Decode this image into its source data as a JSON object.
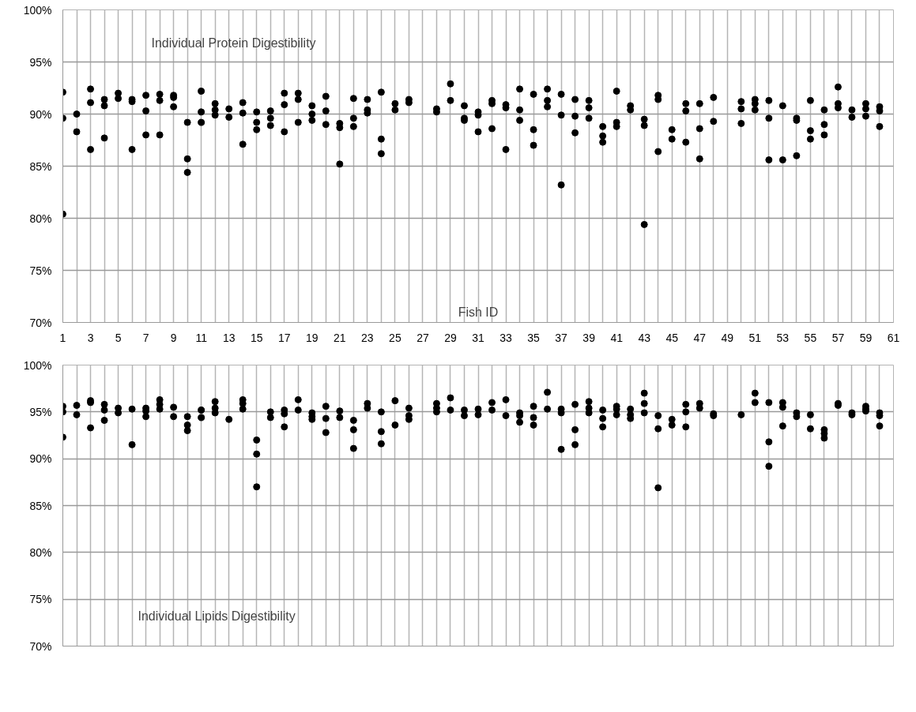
{
  "chart_data": [
    {
      "type": "scatter",
      "title": "Individual Protein Digestibility",
      "xlabel": "Fish ID",
      "marker": "circle",
      "grid": true,
      "xlim": [
        1,
        61
      ],
      "ylim": [
        70,
        100
      ],
      "xticks": [
        1,
        {
          "value": 2,
          "label": null
        },
        3,
        {
          "value": 4,
          "label": null
        },
        5,
        {
          "value": 6,
          "label": null
        },
        7,
        {
          "value": 8,
          "label": null
        },
        9,
        {
          "value": 10,
          "label": null
        },
        11,
        {
          "value": 12,
          "label": null
        },
        13,
        {
          "value": 14,
          "label": null
        },
        15,
        {
          "value": 16,
          "label": null
        },
        17,
        {
          "value": 18,
          "label": null
        },
        19,
        {
          "value": 20,
          "label": null
        },
        21,
        {
          "value": 22,
          "label": null
        },
        23,
        {
          "value": 24,
          "label": null
        },
        25,
        {
          "value": 26,
          "label": null
        },
        27,
        {
          "value": 28,
          "label": null
        },
        29,
        {
          "value": 30,
          "label": null
        },
        31,
        {
          "value": 32,
          "label": null
        },
        33,
        {
          "value": 34,
          "label": null
        },
        35,
        {
          "value": 36,
          "label": null
        },
        37,
        {
          "value": 38,
          "label": null
        },
        39,
        {
          "value": 40,
          "label": null
        },
        41,
        {
          "value": 42,
          "label": null
        },
        43,
        {
          "value": 44,
          "label": null
        },
        45,
        {
          "value": 46,
          "label": null
        },
        47,
        {
          "value": 48,
          "label": null
        },
        49,
        {
          "value": 50,
          "label": null
        },
        51,
        {
          "value": 52,
          "label": null
        },
        53,
        {
          "value": 54,
          "label": null
        },
        55,
        {
          "value": 56,
          "label": null
        },
        57,
        {
          "value": 58,
          "label": null
        },
        59,
        {
          "value": 60,
          "label": null
        },
        61
      ],
      "yticks": [
        {
          "value": 70,
          "label": "70%"
        },
        {
          "value": 75,
          "label": "75%"
        },
        {
          "value": 80,
          "label": "80%"
        },
        {
          "value": 85,
          "label": "85%"
        },
        {
          "value": 90,
          "label": "90%"
        },
        {
          "value": 95,
          "label": "95%"
        },
        {
          "value": 100,
          "label": "100%"
        }
      ],
      "series": [
        {
          "color": "#000000",
          "x": [
            1,
            1,
            1,
            2,
            2,
            3,
            3,
            3,
            4,
            4,
            4,
            5,
            5,
            6,
            6,
            6,
            7,
            7,
            7,
            8,
            8,
            8,
            9,
            9,
            9,
            10,
            10,
            10,
            11,
            11,
            11,
            12,
            12,
            12,
            13,
            13,
            14,
            14,
            14,
            15,
            15,
            15,
            16,
            16,
            16,
            17,
            17,
            17,
            18,
            18,
            18,
            19,
            19,
            19,
            20,
            20,
            20,
            21,
            21,
            21,
            22,
            22,
            22,
            23,
            23,
            23,
            24,
            24,
            24,
            25,
            25,
            26,
            26,
            28,
            28,
            29,
            29,
            30,
            30,
            30,
            31,
            31,
            31,
            32,
            32,
            32,
            33,
            33,
            33,
            34,
            34,
            34,
            35,
            35,
            35,
            36,
            36,
            36,
            37,
            37,
            37,
            38,
            38,
            38,
            39,
            39,
            39,
            40,
            40,
            40,
            41,
            41,
            41,
            42,
            42,
            43,
            43,
            43,
            44,
            44,
            44,
            45,
            45,
            46,
            46,
            46,
            47,
            47,
            47,
            48,
            48,
            50,
            50,
            50,
            51,
            51,
            51,
            52,
            52,
            52,
            53,
            53,
            54,
            54,
            54,
            55,
            55,
            55,
            56,
            56,
            56,
            57,
            57,
            57,
            58,
            58,
            59,
            59,
            59,
            60,
            60,
            60
          ],
          "values": [
            92.1,
            89.6,
            80.4,
            90.0,
            88.3,
            92.4,
            91.1,
            86.6,
            91.4,
            90.8,
            87.7,
            92.0,
            91.5,
            91.4,
            91.2,
            86.6,
            91.8,
            90.3,
            88.0,
            91.9,
            91.3,
            88.0,
            91.8,
            91.6,
            90.7,
            89.2,
            85.7,
            84.4,
            92.2,
            90.2,
            89.2,
            91.0,
            90.4,
            89.9,
            90.5,
            89.7,
            91.1,
            90.1,
            87.1,
            90.2,
            89.2,
            88.5,
            90.3,
            89.6,
            88.9,
            92.0,
            90.9,
            88.3,
            92.0,
            91.4,
            89.2,
            90.8,
            90.0,
            89.4,
            91.7,
            90.3,
            89.0,
            89.1,
            88.7,
            85.2,
            91.5,
            89.6,
            88.8,
            91.4,
            90.4,
            90.1,
            92.1,
            87.6,
            86.2,
            91.0,
            90.4,
            91.4,
            91.1,
            90.5,
            90.2,
            92.9,
            91.3,
            90.8,
            89.6,
            89.4,
            90.2,
            89.9,
            88.3,
            91.3,
            91.0,
            88.6,
            90.9,
            90.6,
            86.6,
            92.4,
            90.4,
            89.4,
            91.9,
            88.5,
            87.0,
            92.4,
            91.3,
            90.7,
            91.9,
            89.9,
            83.2,
            91.4,
            89.8,
            88.2,
            91.3,
            90.6,
            89.6,
            88.8,
            87.9,
            87.3,
            92.2,
            89.2,
            88.8,
            90.8,
            90.4,
            89.5,
            88.9,
            79.4,
            91.8,
            91.4,
            86.4,
            88.5,
            87.6,
            91.0,
            90.3,
            87.3,
            91.0,
            88.6,
            85.7,
            91.6,
            89.3,
            91.2,
            90.5,
            89.1,
            91.4,
            91.0,
            90.4,
            91.3,
            89.6,
            85.6,
            90.8,
            85.6,
            89.6,
            89.4,
            86.0,
            91.3,
            88.4,
            87.6,
            90.4,
            89.0,
            88.0,
            92.6,
            91.0,
            90.6,
            90.4,
            89.7,
            91.0,
            90.5,
            89.8,
            90.7,
            90.3,
            88.8
          ]
        }
      ]
    },
    {
      "type": "scatter",
      "title": "Individual Lipids Digestibility",
      "marker": "circle",
      "grid": true,
      "tick_labels": "y",
      "xlim": [
        1,
        61
      ],
      "ylim": [
        70,
        100
      ],
      "xticks": [
        1,
        {
          "value": 2,
          "label": null
        },
        3,
        {
          "value": 4,
          "label": null
        },
        5,
        {
          "value": 6,
          "label": null
        },
        7,
        {
          "value": 8,
          "label": null
        },
        9,
        {
          "value": 10,
          "label": null
        },
        11,
        {
          "value": 12,
          "label": null
        },
        13,
        {
          "value": 14,
          "label": null
        },
        15,
        {
          "value": 16,
          "label": null
        },
        17,
        {
          "value": 18,
          "label": null
        },
        19,
        {
          "value": 20,
          "label": null
        },
        21,
        {
          "value": 22,
          "label": null
        },
        23,
        {
          "value": 24,
          "label": null
        },
        25,
        {
          "value": 26,
          "label": null
        },
        27,
        {
          "value": 28,
          "label": null
        },
        29,
        {
          "value": 30,
          "label": null
        },
        31,
        {
          "value": 32,
          "label": null
        },
        33,
        {
          "value": 34,
          "label": null
        },
        35,
        {
          "value": 36,
          "label": null
        },
        37,
        {
          "value": 38,
          "label": null
        },
        39,
        {
          "value": 40,
          "label": null
        },
        41,
        {
          "value": 42,
          "label": null
        },
        43,
        {
          "value": 44,
          "label": null
        },
        45,
        {
          "value": 46,
          "label": null
        },
        47,
        {
          "value": 48,
          "label": null
        },
        49,
        {
          "value": 50,
          "label": null
        },
        51,
        {
          "value": 52,
          "label": null
        },
        53,
        {
          "value": 54,
          "label": null
        },
        55,
        {
          "value": 56,
          "label": null
        },
        57,
        {
          "value": 58,
          "label": null
        },
        59,
        {
          "value": 60,
          "label": null
        },
        61
      ],
      "yticks": [
        {
          "value": 70,
          "label": "70%"
        },
        {
          "value": 75,
          "label": "75%"
        },
        {
          "value": 80,
          "label": "80%"
        },
        {
          "value": 85,
          "label": "85%"
        },
        {
          "value": 90,
          "label": "90%"
        },
        {
          "value": 95,
          "label": "95%"
        },
        {
          "value": 100,
          "label": "100%"
        }
      ],
      "series": [
        {
          "color": "#000000",
          "x": [
            1,
            1,
            1,
            2,
            2,
            3,
            3,
            3,
            4,
            4,
            4,
            5,
            5,
            6,
            6,
            7,
            7,
            7,
            8,
            8,
            8,
            9,
            9,
            10,
            10,
            10,
            11,
            11,
            12,
            12,
            12,
            13,
            14,
            14,
            14,
            15,
            15,
            15,
            16,
            16,
            17,
            17,
            17,
            18,
            18,
            19,
            19,
            19,
            20,
            20,
            20,
            21,
            21,
            22,
            22,
            22,
            23,
            23,
            24,
            24,
            24,
            25,
            25,
            26,
            26,
            26,
            28,
            28,
            28,
            29,
            29,
            30,
            30,
            31,
            31,
            32,
            32,
            33,
            33,
            34,
            34,
            34,
            35,
            35,
            35,
            36,
            36,
            37,
            37,
            37,
            38,
            38,
            38,
            39,
            39,
            39,
            40,
            40,
            40,
            41,
            41,
            41,
            42,
            42,
            42,
            43,
            43,
            43,
            44,
            44,
            44,
            45,
            45,
            46,
            46,
            46,
            47,
            47,
            48,
            48,
            50,
            51,
            51,
            52,
            52,
            52,
            53,
            53,
            53,
            54,
            54,
            55,
            55,
            56,
            56,
            56,
            57,
            57,
            58,
            58,
            59,
            59,
            59,
            60,
            60,
            60
          ],
          "values": [
            95.6,
            95.0,
            92.3,
            95.7,
            94.7,
            96.2,
            96.0,
            93.3,
            95.8,
            95.2,
            94.1,
            95.4,
            94.9,
            95.3,
            91.5,
            95.4,
            95.1,
            94.5,
            96.3,
            95.8,
            95.3,
            95.5,
            94.5,
            94.5,
            93.6,
            93.0,
            95.2,
            94.4,
            96.1,
            95.4,
            94.9,
            94.2,
            96.3,
            95.9,
            95.3,
            92.0,
            90.5,
            87.0,
            95.0,
            94.4,
            95.2,
            94.8,
            93.4,
            96.3,
            95.2,
            94.9,
            94.5,
            94.2,
            95.6,
            94.3,
            92.8,
            95.1,
            94.4,
            94.1,
            93.1,
            91.1,
            95.9,
            95.4,
            95.0,
            92.9,
            91.6,
            96.2,
            93.6,
            95.4,
            94.6,
            94.2,
            95.9,
            95.4,
            95.0,
            96.5,
            95.2,
            95.2,
            94.6,
            95.3,
            94.7,
            96.0,
            95.2,
            96.3,
            94.6,
            94.9,
            94.6,
            93.9,
            95.6,
            94.4,
            93.6,
            97.1,
            95.3,
            95.3,
            94.9,
            91.0,
            95.8,
            93.1,
            91.5,
            96.1,
            95.4,
            94.9,
            95.2,
            94.3,
            93.4,
            95.6,
            95.3,
            94.7,
            95.3,
            94.7,
            94.3,
            97.0,
            95.9,
            94.9,
            94.6,
            93.2,
            86.9,
            94.2,
            93.6,
            95.8,
            95.0,
            93.4,
            95.9,
            95.4,
            94.8,
            94.6,
            94.7,
            97.0,
            96.0,
            96.0,
            91.8,
            89.2,
            96.0,
            95.5,
            93.5,
            94.9,
            94.5,
            94.7,
            93.2,
            93.1,
            92.7,
            92.2,
            95.9,
            95.7,
            94.9,
            94.7,
            95.6,
            95.3,
            95.1,
            94.9,
            94.6,
            93.5
          ]
        }
      ]
    }
  ]
}
